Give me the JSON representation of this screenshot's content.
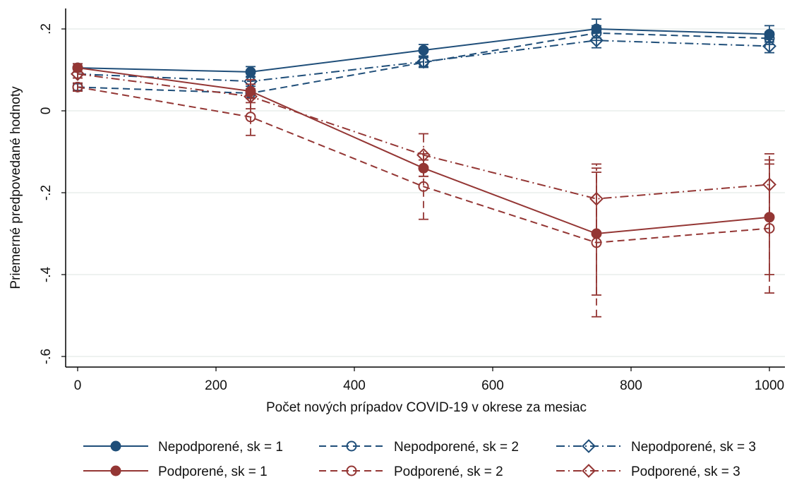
{
  "chart_data": {
    "type": "line",
    "xlabel": "Počet nových prípadov COVID-19 v okrese za mesiac",
    "ylabel": "Priemerné predpovedané hodnoty",
    "xlim": [
      -20,
      1020
    ],
    "ylim": [
      -0.62,
      0.25
    ],
    "xticks": [
      0,
      200,
      400,
      600,
      800,
      1000
    ],
    "xtick_labels": [
      "0",
      "200",
      "400",
      "600",
      "800",
      "1000"
    ],
    "yticks": [
      0.2,
      0,
      -0.2,
      -0.4,
      -0.6
    ],
    "ytick_labels": [
      ".2",
      "0",
      "-.2",
      "-.4",
      "-.6"
    ],
    "grid": true,
    "legend_position": "bottom",
    "x": [
      0,
      250,
      500,
      750,
      1000
    ],
    "series": [
      {
        "name": "Nepodporené, sk = 1",
        "color": "#1f4e79",
        "dash": "solid",
        "marker": "filled-circle",
        "values": [
          0.105,
          0.095,
          0.148,
          0.2,
          0.187
        ],
        "ci_low": [
          0.095,
          0.082,
          0.134,
          0.178,
          0.168
        ],
        "ci_high": [
          0.115,
          0.108,
          0.162,
          0.224,
          0.208
        ]
      },
      {
        "name": "Nepodporené, sk = 2",
        "color": "#1f4e79",
        "dash": "dashed",
        "marker": "hollow-circle",
        "values": [
          0.058,
          0.043,
          0.118,
          0.19,
          0.177
        ],
        "ci_low": [
          0.05,
          0.032,
          0.106,
          0.172,
          0.162
        ],
        "ci_high": [
          0.066,
          0.054,
          0.13,
          0.208,
          0.192
        ]
      },
      {
        "name": "Nepodporené, sk = 3",
        "color": "#1f4e79",
        "dash": "dashdot",
        "marker": "hollow-diamond",
        "values": [
          0.09,
          0.072,
          0.12,
          0.172,
          0.158
        ],
        "ci_low": [
          0.08,
          0.06,
          0.108,
          0.154,
          0.142
        ],
        "ci_high": [
          0.1,
          0.084,
          0.132,
          0.19,
          0.174
        ]
      },
      {
        "name": "Podporené, sk = 1",
        "color": "#943634",
        "dash": "solid",
        "marker": "filled-circle",
        "values": [
          0.105,
          0.048,
          -0.14,
          -0.3,
          -0.26
        ],
        "ci_low": [
          0.095,
          0.02,
          -0.16,
          -0.45,
          -0.4
        ],
        "ci_high": [
          0.115,
          0.076,
          -0.12,
          -0.15,
          -0.12
        ]
      },
      {
        "name": "Podporené, sk = 2",
        "color": "#943634",
        "dash": "dashed",
        "marker": "hollow-circle",
        "values": [
          0.058,
          -0.015,
          -0.185,
          -0.322,
          -0.287
        ],
        "ci_low": [
          0.048,
          -0.06,
          -0.265,
          -0.503,
          -0.445
        ],
        "ci_high": [
          0.068,
          0.03,
          -0.105,
          -0.14,
          -0.13
        ]
      },
      {
        "name": "Podporené, sk = 3",
        "color": "#943634",
        "dash": "dashdot",
        "marker": "hollow-diamond",
        "values": [
          0.09,
          0.035,
          -0.108,
          -0.215,
          -0.18
        ],
        "ci_low": [
          0.08,
          0.005,
          -0.16,
          -0.3,
          -0.255
        ],
        "ci_high": [
          0.1,
          0.065,
          -0.056,
          -0.13,
          -0.105
        ]
      }
    ]
  }
}
